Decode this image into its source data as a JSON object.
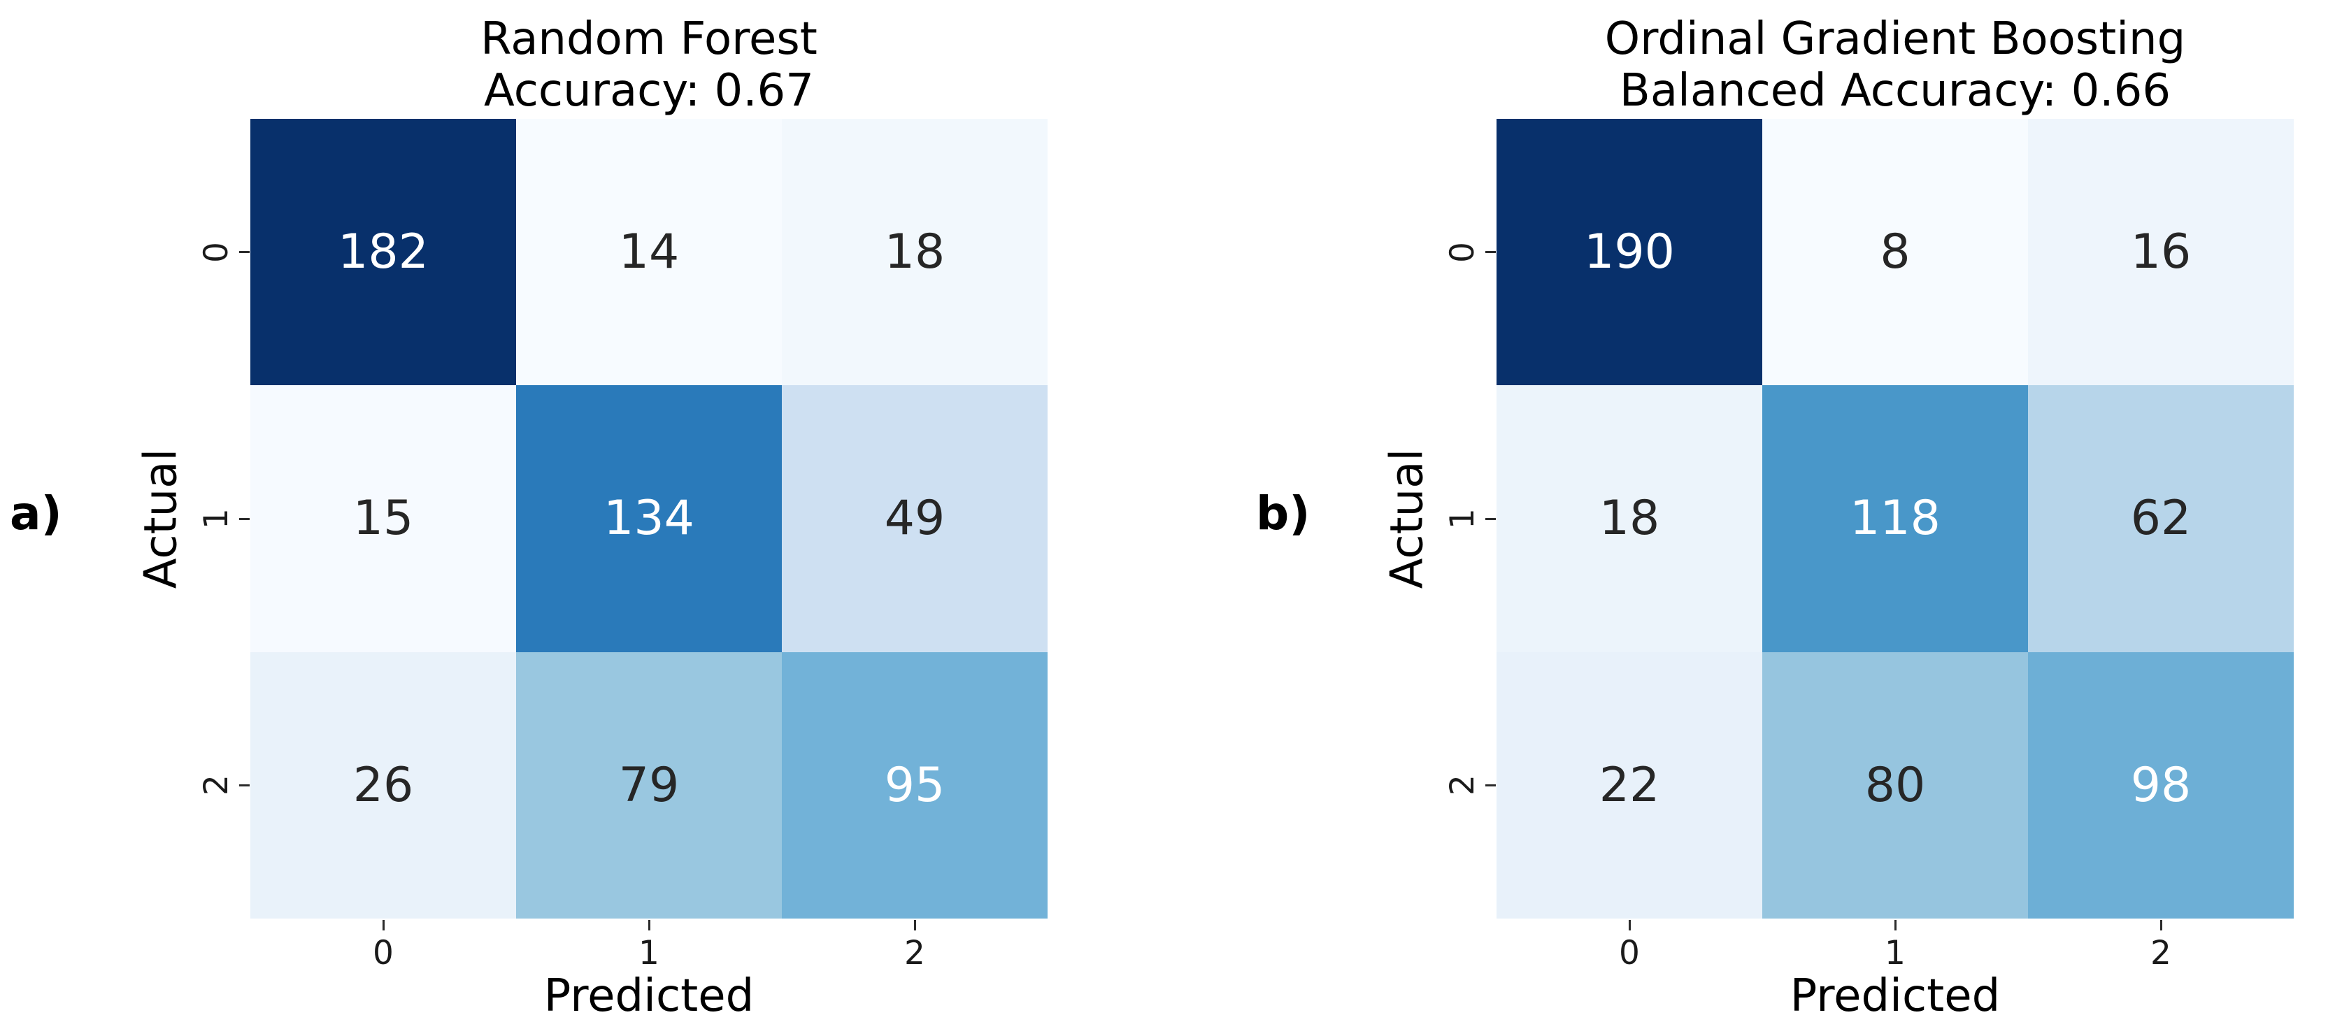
{
  "panels": [
    {
      "corner_label": "a)",
      "title_line1": "Random Forest",
      "title_line2": "Accuracy: 0.67",
      "xlabel": "Predicted",
      "ylabel": "Actual",
      "xticks": [
        "0",
        "1",
        "2"
      ],
      "yticks": [
        "0",
        "1",
        "2"
      ]
    },
    {
      "corner_label": "b)",
      "title_line1": "Ordinal Gradient Boosting",
      "title_line2": "Balanced Accuracy: 0.66",
      "xlabel": "Predicted",
      "ylabel": "Actual",
      "xticks": [
        "0",
        "1",
        "2"
      ],
      "yticks": [
        "0",
        "1",
        "2"
      ]
    }
  ],
  "colors": {
    "background": "#ffffff",
    "colormap_name": "Blues",
    "colormap_stops": [
      "#f7fbff",
      "#deebf7",
      "#c6dbef",
      "#9ecae1",
      "#6baed6",
      "#4292c6",
      "#2171b5",
      "#08519c",
      "#08306b"
    ],
    "annotation_light": "#ffffff",
    "annotation_dark": "#262626",
    "title_text": "#000000",
    "tick_text": "#1a1a1a",
    "tick_mark": "#2b2b2b"
  },
  "chart_data": [
    {
      "type": "heatmap",
      "title": "Random Forest\nAccuracy: 0.67",
      "xlabel": "Predicted",
      "ylabel": "Actual",
      "x_categories": [
        "0",
        "1",
        "2"
      ],
      "y_categories": [
        "0",
        "1",
        "2"
      ],
      "values": [
        [
          182,
          14,
          18
        ],
        [
          15,
          134,
          49
        ],
        [
          26,
          79,
          95
        ]
      ],
      "colormap": "Blues",
      "annotated": true,
      "legend": false,
      "grid": false
    },
    {
      "type": "heatmap",
      "title": "Ordinal Gradient Boosting\nBalanced Accuracy: 0.66",
      "xlabel": "Predicted",
      "ylabel": "Actual",
      "x_categories": [
        "0",
        "1",
        "2"
      ],
      "y_categories": [
        "0",
        "1",
        "2"
      ],
      "values": [
        [
          190,
          8,
          16
        ],
        [
          18,
          118,
          62
        ],
        [
          22,
          80,
          98
        ]
      ],
      "colormap": "Blues",
      "annotated": true,
      "legend": false,
      "grid": false
    }
  ]
}
